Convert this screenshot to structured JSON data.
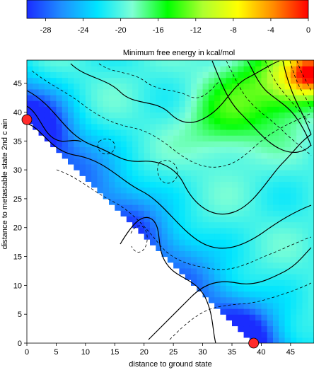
{
  "chart_data": {
    "type": "heatmap",
    "colorbar": {
      "title": "Minimum free energy in kcal/mol",
      "range": [
        -30,
        0
      ],
      "ticks": [
        -28,
        -24,
        -20,
        -16,
        -12,
        -8,
        -4,
        0
      ],
      "tick_labels": [
        "-28",
        "-24",
        "-20",
        "-16",
        "-12",
        "-8",
        "-4",
        "0"
      ],
      "colormap": [
        "#1a2cff",
        "#1e90ff",
        "#00e5ff",
        "#7fffd4",
        "#00ff00",
        "#adff2f",
        "#ffff00",
        "#ff8c00",
        "#ff0000"
      ]
    },
    "xlabel": "distance to ground state",
    "ylabel": "distance to metastable state  2nd c ain",
    "x_range": [
      0,
      49
    ],
    "y_range": [
      0,
      49
    ],
    "x_ticks": [
      0,
      5,
      10,
      15,
      20,
      25,
      30,
      35,
      40,
      45
    ],
    "x_tick_labels": [
      "0",
      "5",
      "10",
      "15",
      "20",
      "25",
      "30",
      "35",
      "40",
      "45"
    ],
    "y_ticks": [
      0,
      5,
      10,
      15,
      20,
      25,
      30,
      35,
      40,
      45
    ],
    "y_tick_labels": [
      "0",
      "5",
      "10",
      "15",
      "20",
      "25",
      "30",
      "35",
      "40",
      "45"
    ],
    "markers": [
      {
        "x": 0,
        "y": 38.7,
        "color": "#ff2a2a"
      },
      {
        "x": 38.7,
        "y": 0,
        "color": "#ff2a2a"
      }
    ],
    "valid_region": "x + y >= 38.7"
  }
}
